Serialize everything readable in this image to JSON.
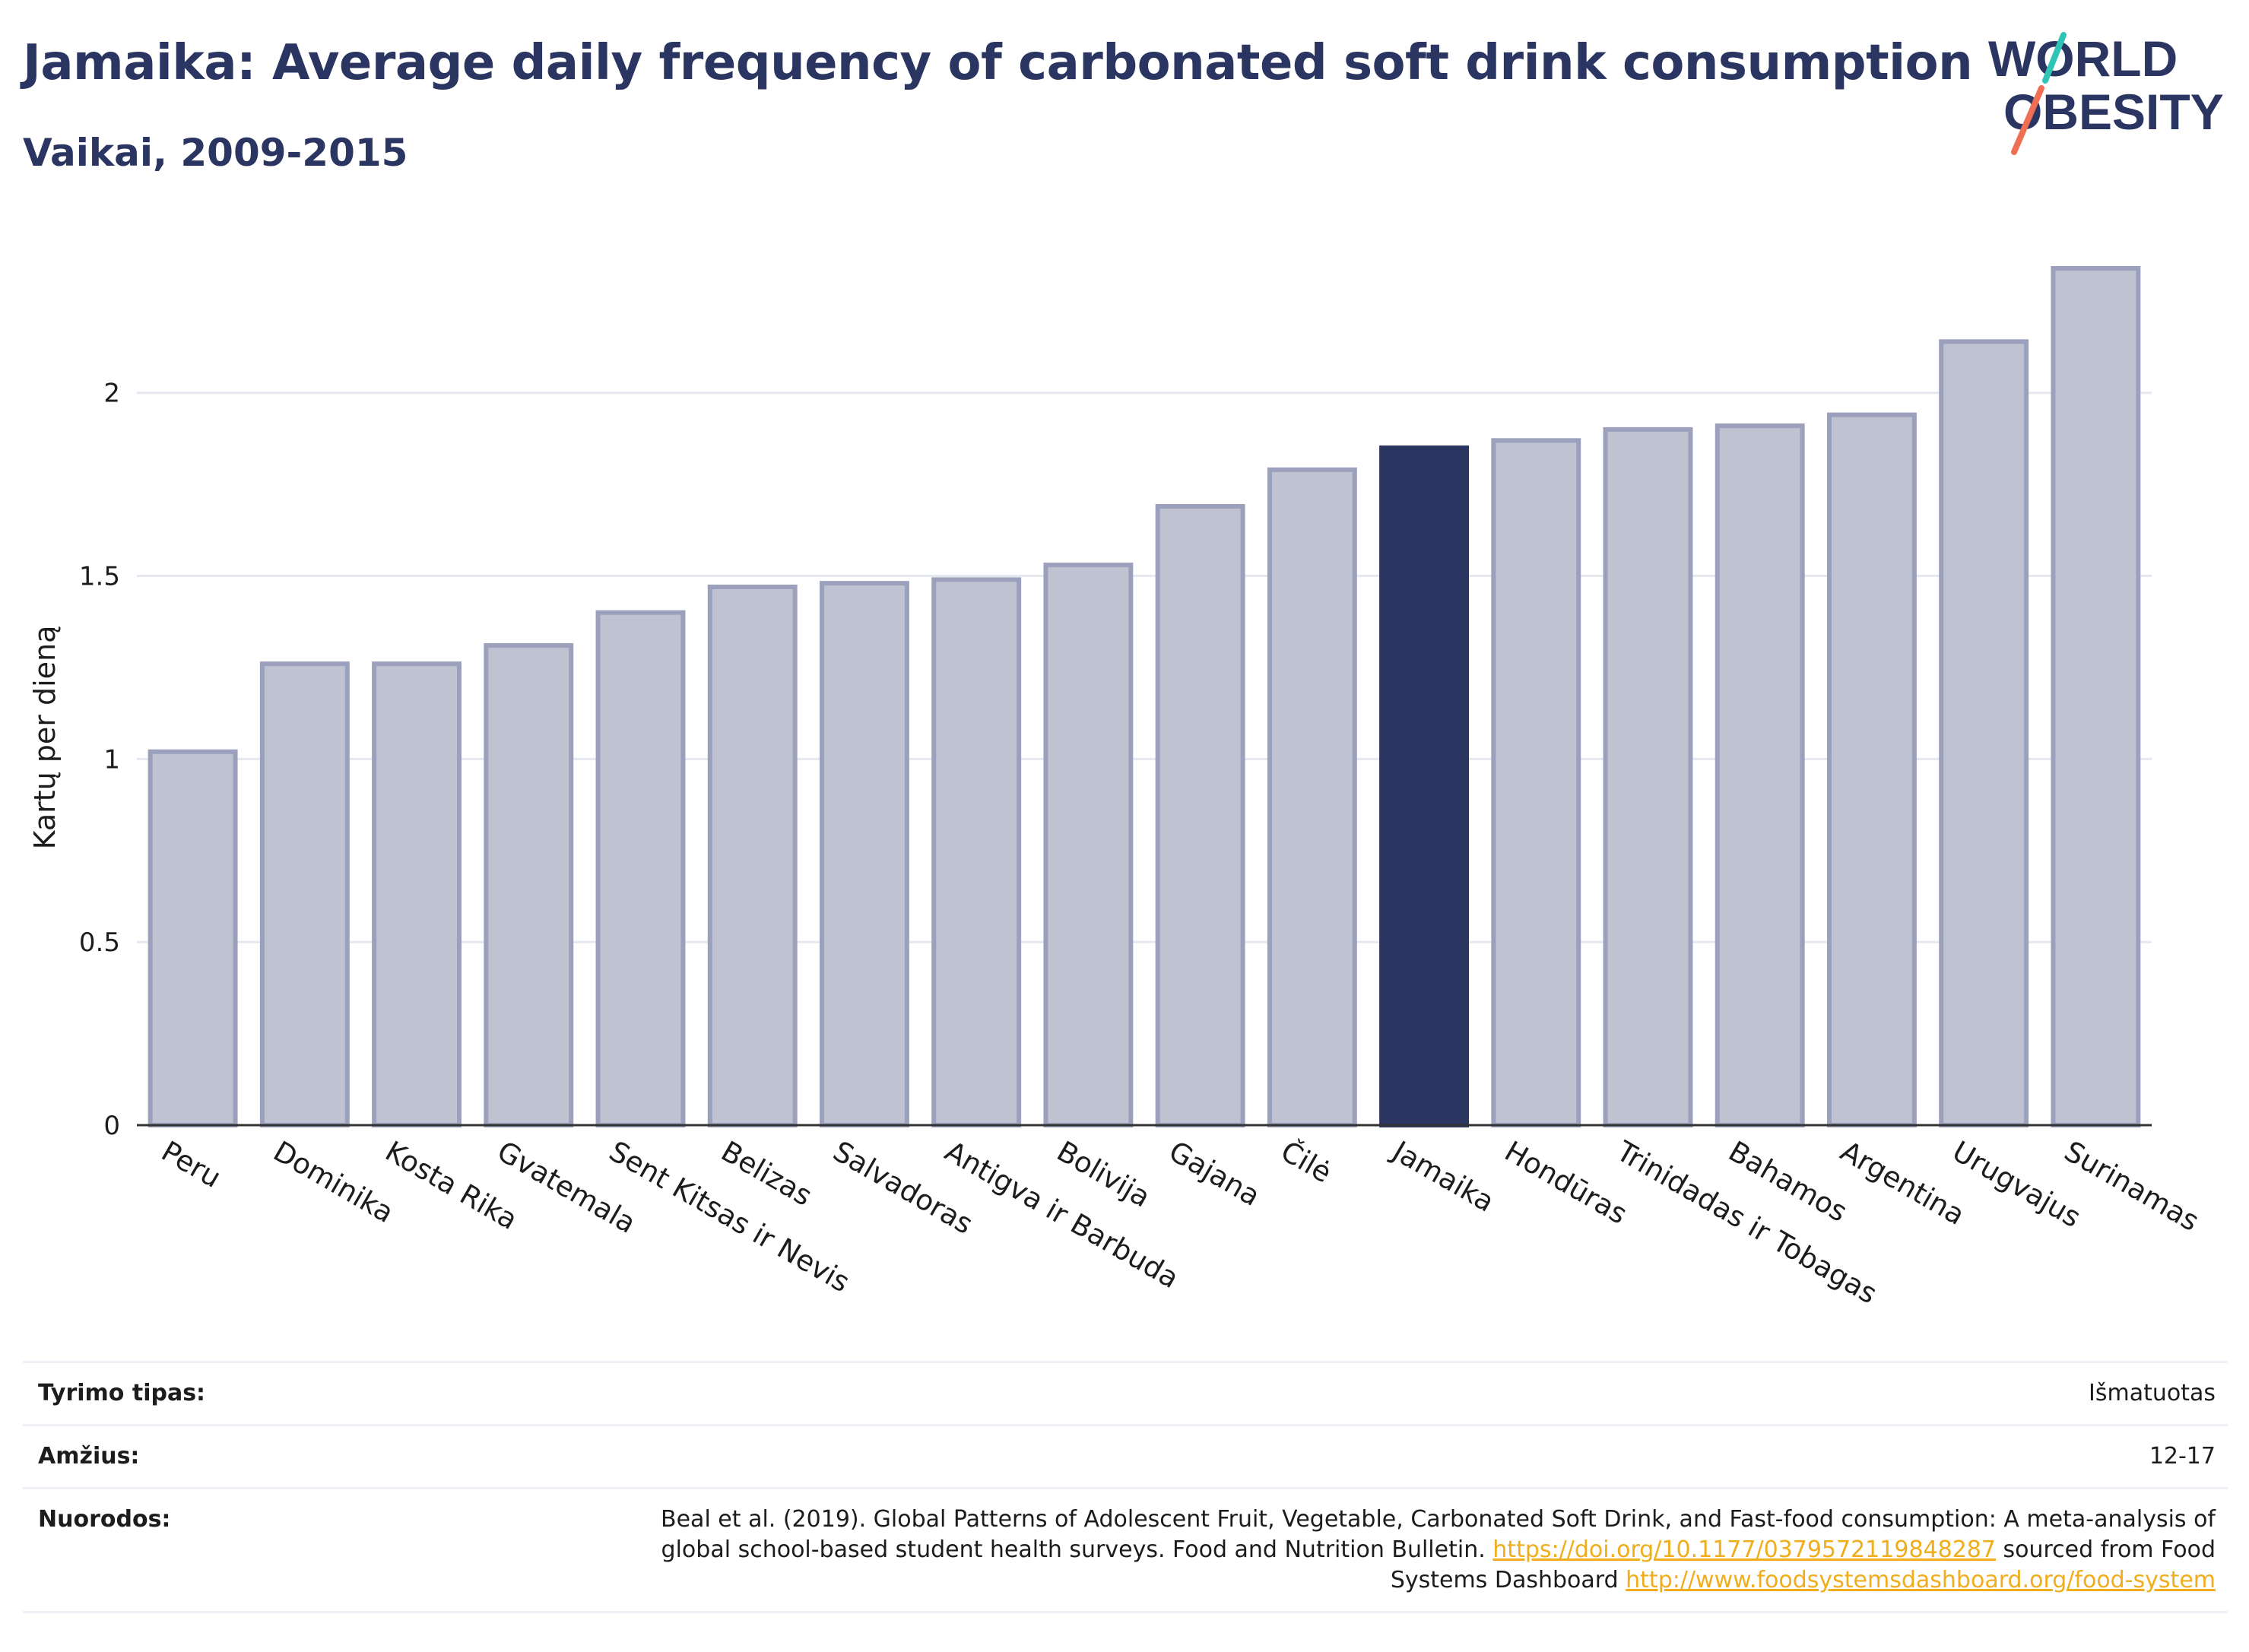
{
  "header": {
    "title": "Jamaika: Average daily frequency of carbonated soft drink consumption",
    "subtitle": "Vaikai, 2009-2015"
  },
  "logo": {
    "line1": "WORLD",
    "line2": "OBESITY"
  },
  "chart_data": {
    "type": "bar",
    "title": "Jamaika: Average daily frequency of carbonated soft drink consumption",
    "subtitle": "Vaikai, 2009-2015",
    "ylabel": "Kartų per dieną",
    "xlabel": "",
    "ylim": [
      0,
      2.45
    ],
    "yticks": [
      0,
      0.5,
      1,
      1.5,
      2
    ],
    "ytick_labels": [
      "0",
      "0.5",
      "1",
      "1.5",
      "2"
    ],
    "grid": true,
    "categories": [
      "Peru",
      "Dominika",
      "Kosta Rika",
      "Gvatemala",
      "Sent Kitsas ir Nevis",
      "Belizas",
      "Salvadoras",
      "Antigva ir Barbuda",
      "Bolivija",
      "Gajana",
      "Čilė",
      "Jamaika",
      "Hondūras",
      "Trinidadas ir Tobagas",
      "Bahamos",
      "Argentina",
      "Urugvajus",
      "Surinamas"
    ],
    "values": [
      1.02,
      1.26,
      1.26,
      1.31,
      1.4,
      1.47,
      1.48,
      1.49,
      1.53,
      1.69,
      1.79,
      1.85,
      1.87,
      1.9,
      1.91,
      1.94,
      2.14,
      2.34
    ],
    "highlight": "Jamaika",
    "colors": {
      "bar_fill": "#bfc2d0",
      "bar_stroke": "#9ba1bc",
      "highlight": "#2b3561",
      "grid": "#e6e8ef",
      "axis": "#333333"
    }
  },
  "meta": {
    "rows": [
      {
        "label": "Tyrimo tipas:",
        "value": "Išmatuotas"
      },
      {
        "label": "Amžius:",
        "value": "12-17"
      },
      {
        "label": "Nuorodos:",
        "text1": "Beal et al. (2019). Global Patterns of Adolescent Fruit, Vegetable, Carbonated Soft Drink, and Fast-food consumption: A meta-analysis of global school-based student health surveys. Food and Nutrition Bulletin. ",
        "link1": "https://doi.org/10.1177/0379572119848287",
        "text2": " sourced from Food Systems Dashboard ",
        "link2": "http://www.foodsystemsdashboard.org/food-system"
      }
    ]
  }
}
